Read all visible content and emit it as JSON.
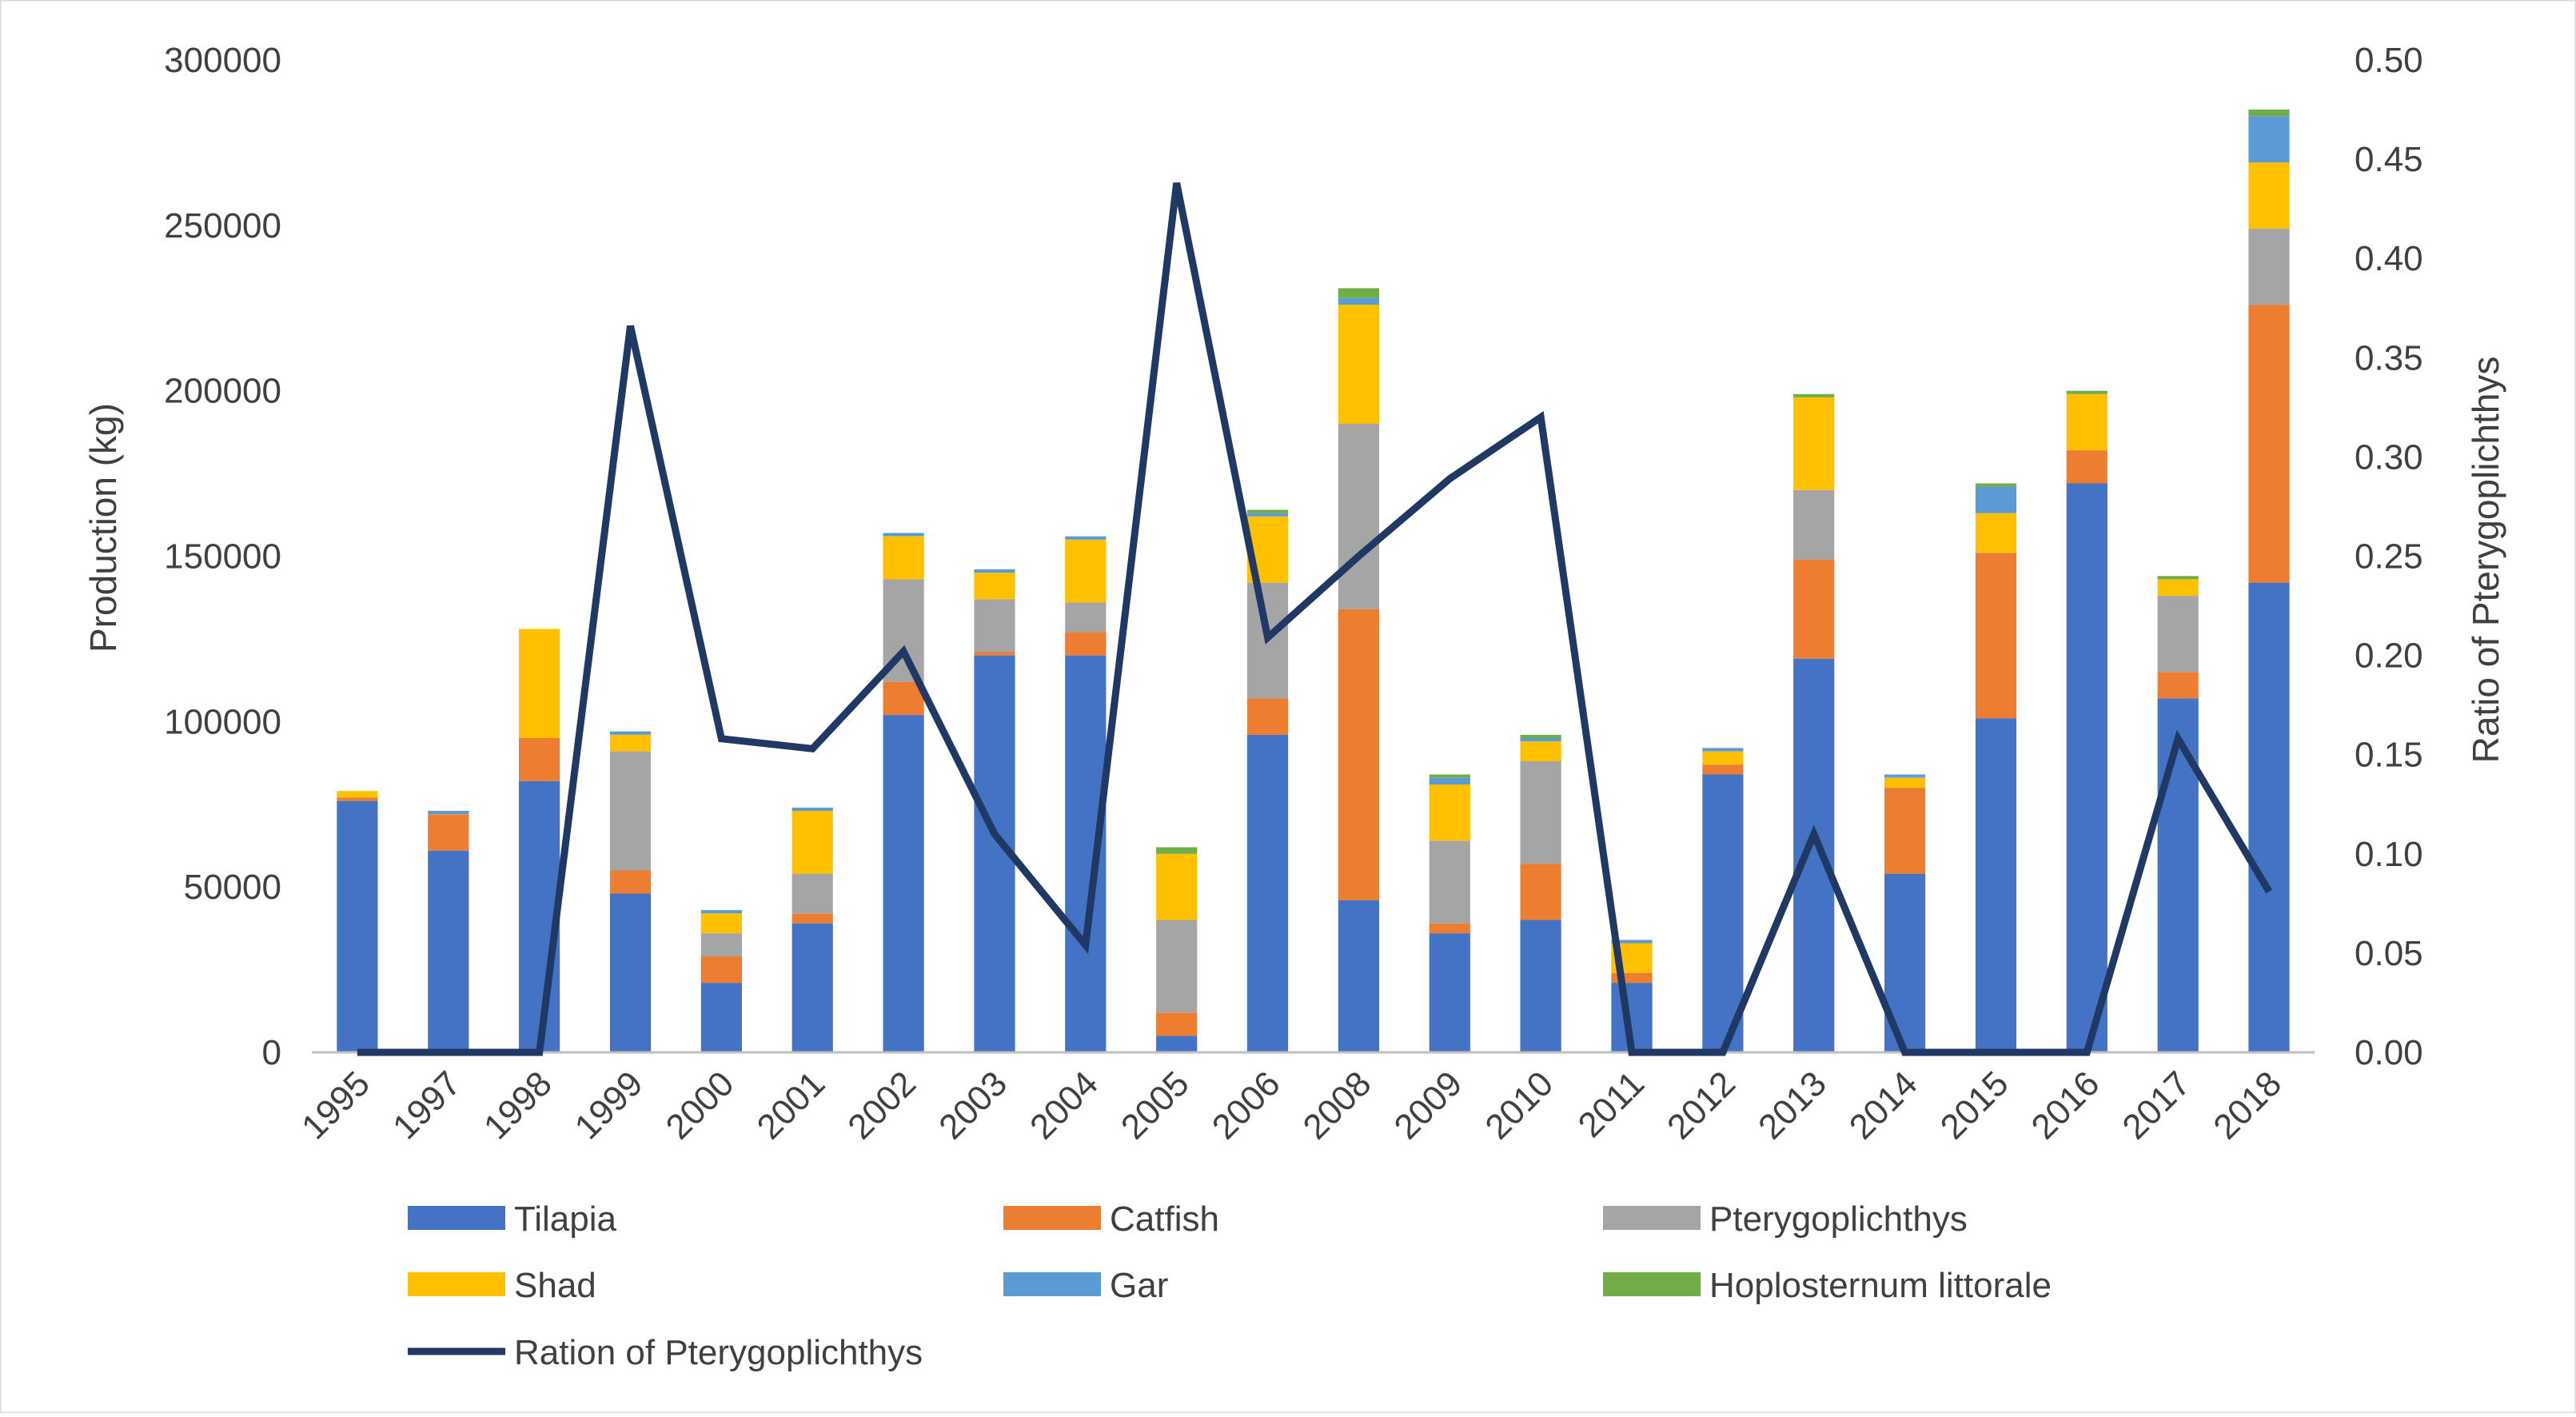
{
  "chart_data": {
    "type": "bar",
    "stacked": true,
    "categories": [
      "1995",
      "1997",
      "1998",
      "1999",
      "2000",
      "2001",
      "2002",
      "2003",
      "2004",
      "2005",
      "2006",
      "2008",
      "2009",
      "2010",
      "2011",
      "2012",
      "2013",
      "2014",
      "2015",
      "2016",
      "2017",
      "2018"
    ],
    "series": [
      {
        "name": "Tilapia",
        "color": "#4472C4",
        "values": [
          76000,
          61000,
          82000,
          48000,
          21000,
          39000,
          102000,
          120000,
          120000,
          5000,
          96000,
          46000,
          36000,
          40000,
          21000,
          84000,
          119000,
          54000,
          101000,
          172000,
          107000,
          142000
        ]
      },
      {
        "name": "Catfish",
        "color": "#ED7D31",
        "values": [
          1000,
          11000,
          13000,
          7000,
          8000,
          3000,
          10000,
          1000,
          7000,
          7000,
          11000,
          88000,
          3000,
          17000,
          3000,
          3000,
          30000,
          26000,
          50000,
          10000,
          8000,
          84000
        ]
      },
      {
        "name": "Pterygoplichthys",
        "color": "#A5A5A5",
        "values": [
          0,
          0,
          0,
          36000,
          7000,
          12000,
          31000,
          16000,
          9000,
          28000,
          35000,
          56000,
          25000,
          31000,
          0,
          0,
          21000,
          0,
          0,
          0,
          23000,
          23000
        ]
      },
      {
        "name": "Shad",
        "color": "#FFC000",
        "values": [
          2000,
          0,
          33000,
          5000,
          6000,
          19000,
          13000,
          8000,
          19000,
          20000,
          20000,
          36000,
          17000,
          6000,
          9000,
          4000,
          28000,
          3000,
          12000,
          17000,
          5000,
          20000
        ]
      },
      {
        "name": "Gar",
        "color": "#5B9BD5",
        "values": [
          0,
          1000,
          0,
          1000,
          1000,
          1000,
          1000,
          1000,
          1000,
          0,
          1000,
          2000,
          2000,
          1000,
          1000,
          1000,
          0,
          1000,
          8000,
          0,
          0,
          14000
        ]
      },
      {
        "name": "Hoplosternum littorale",
        "color": "#70AD47",
        "values": [
          0,
          0,
          0,
          0,
          0,
          0,
          0,
          0,
          0,
          2000,
          1000,
          3000,
          1000,
          1000,
          0,
          0,
          1000,
          0,
          1000,
          1000,
          1000,
          2000
        ]
      }
    ],
    "line_series": {
      "name": "Ration of Pterygoplichthys",
      "color": "#203864",
      "axis": "right",
      "values": [
        0,
        0,
        0,
        0.366,
        0.158,
        0.153,
        0.202,
        0.11,
        0.054,
        0.438,
        0.209,
        0.25,
        0.289,
        0.32,
        0,
        0,
        0.11,
        0,
        0,
        0,
        0.158,
        0.081
      ]
    },
    "y_left": {
      "label": "Production (kg)",
      "ylim": [
        0,
        300000
      ],
      "ticks": [
        "0",
        "50000",
        "100000",
        "150000",
        "200000",
        "250000",
        "300000"
      ]
    },
    "y_right": {
      "label": "Ratio of Pterygoplichthys",
      "ylim": [
        0,
        0.5
      ],
      "ticks": [
        "0.00",
        "0.05",
        "0.10",
        "0.15",
        "0.20",
        "0.25",
        "0.30",
        "0.35",
        "0.40",
        "0.45",
        "0.50"
      ]
    },
    "grid": false,
    "legend": {
      "placement": "bottom",
      "entries": [
        "Tilapia",
        "Catfish",
        "Pterygoplichthys",
        "Shad",
        "Gar",
        "Hoplosternum littorale",
        "Ration of Pterygoplichthys"
      ]
    }
  }
}
